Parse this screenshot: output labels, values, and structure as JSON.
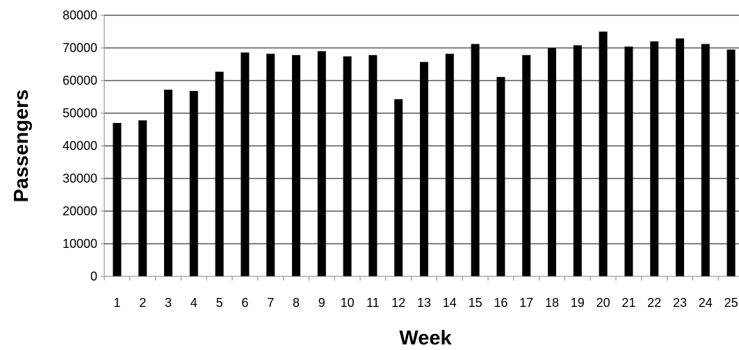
{
  "chart_data": {
    "type": "bar",
    "title": "",
    "xlabel": "Week",
    "ylabel": "Passengers",
    "categories": [
      "1",
      "2",
      "3",
      "4",
      "5",
      "6",
      "7",
      "8",
      "9",
      "10",
      "11",
      "12",
      "13",
      "14",
      "15",
      "16",
      "17",
      "18",
      "19",
      "20",
      "21",
      "22",
      "23",
      "24",
      "25"
    ],
    "series": [
      {
        "values": [
          47000,
          47800,
          57200,
          56800,
          62700,
          68600,
          68200,
          67800,
          69000,
          67400,
          67800,
          54300,
          65700,
          68200,
          71200,
          61100,
          67800,
          70000,
          70800,
          75000,
          70400,
          72000,
          72900,
          71200,
          69500
        ]
      }
    ],
    "ylim": [
      0,
      80000
    ],
    "yticks": [
      0,
      10000,
      20000,
      30000,
      40000,
      50000,
      60000,
      70000,
      80000
    ],
    "grid": true,
    "legend": "none",
    "colors": {
      "bar": "#000000",
      "gridline": "#000000",
      "axis": "#808080",
      "background": "#ffffff"
    }
  }
}
